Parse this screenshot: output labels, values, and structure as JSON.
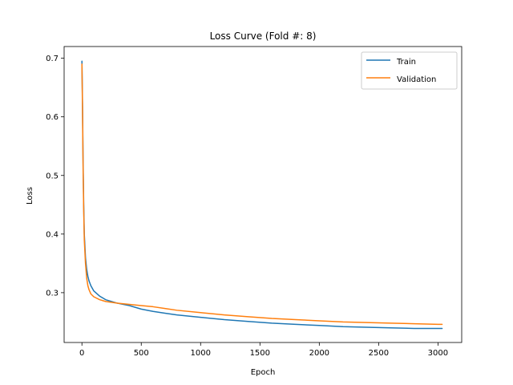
{
  "chart_data": {
    "type": "line",
    "title": "Loss Curve (Fold #: 8)",
    "xlabel": "Epoch",
    "ylabel": "Loss",
    "xlim": [
      -150,
      3200
    ],
    "ylim": [
      0.215,
      0.72
    ],
    "xticks": [
      0,
      500,
      1000,
      1500,
      2000,
      2500,
      3000
    ],
    "yticks": [
      0.3,
      0.4,
      0.5,
      0.6,
      0.7
    ],
    "grid": false,
    "legend": {
      "placement": "top-right"
    },
    "series": [
      {
        "name": "Train",
        "color": "#1f77b4",
        "x": [
          0,
          5,
          10,
          15,
          20,
          30,
          40,
          50,
          60,
          75,
          100,
          150,
          200,
          300,
          400,
          500,
          600,
          700,
          800,
          1000,
          1200,
          1400,
          1600,
          1800,
          2000,
          2200,
          2400,
          2600,
          2800,
          3000,
          3035
        ],
        "y": [
          0.695,
          0.62,
          0.52,
          0.45,
          0.4,
          0.36,
          0.34,
          0.328,
          0.32,
          0.312,
          0.303,
          0.294,
          0.288,
          0.282,
          0.278,
          0.272,
          0.268,
          0.265,
          0.262,
          0.258,
          0.254,
          0.251,
          0.248,
          0.246,
          0.244,
          0.242,
          0.241,
          0.24,
          0.239,
          0.239,
          0.239
        ]
      },
      {
        "name": "Validation",
        "color": "#ff7f0e",
        "x": [
          0,
          5,
          10,
          15,
          20,
          30,
          40,
          50,
          60,
          75,
          100,
          150,
          200,
          300,
          400,
          500,
          600,
          700,
          800,
          1000,
          1200,
          1400,
          1600,
          1800,
          2000,
          2200,
          2400,
          2600,
          2800,
          3000,
          3035
        ],
        "y": [
          0.69,
          0.61,
          0.51,
          0.44,
          0.39,
          0.35,
          0.325,
          0.312,
          0.305,
          0.298,
          0.293,
          0.288,
          0.285,
          0.282,
          0.28,
          0.278,
          0.276,
          0.273,
          0.27,
          0.266,
          0.262,
          0.259,
          0.256,
          0.254,
          0.252,
          0.25,
          0.249,
          0.248,
          0.247,
          0.246,
          0.246
        ]
      }
    ]
  }
}
